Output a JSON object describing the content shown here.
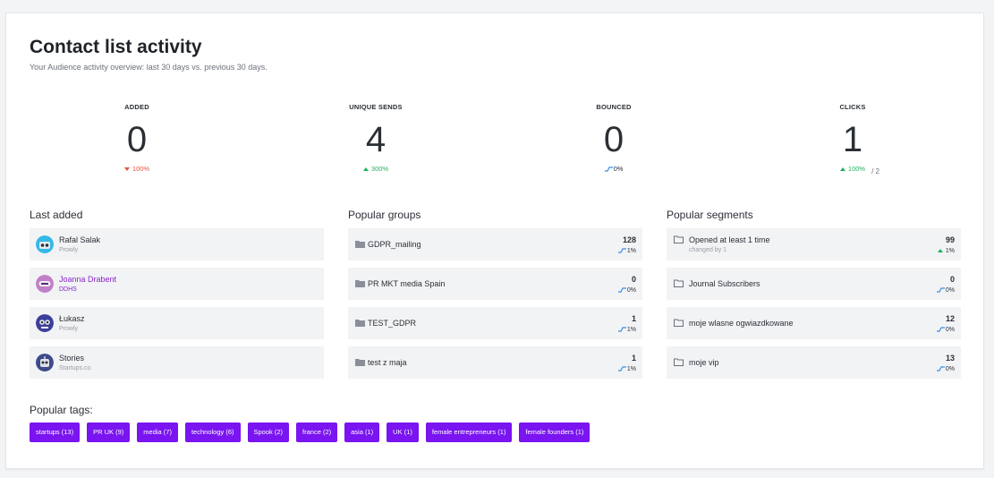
{
  "header": {
    "title": "Contact list activity",
    "subtitle": "Your Audience activity overview: last 30 days vs. previous 30 days."
  },
  "stats": [
    {
      "label": "ADDED",
      "value": "0",
      "change": "100%",
      "trend": "down"
    },
    {
      "label": "UNIQUE SENDS",
      "value": "4",
      "change": "300%",
      "trend": "up"
    },
    {
      "label": "BOUNCED",
      "value": "0",
      "change": "0%",
      "trend": "flat"
    },
    {
      "label": "CLICKS",
      "value": "1",
      "of": "/ 2",
      "change": "100%",
      "trend": "up"
    }
  ],
  "last_added": {
    "title": "Last added",
    "items": [
      {
        "name": "Rafal Salak",
        "company": "Prowly"
      },
      {
        "name": "Joanna Drabent",
        "company": "DDHS"
      },
      {
        "name": "Łukasz",
        "company": "Prowly"
      },
      {
        "name": "Stories",
        "company": "Startups.co"
      }
    ]
  },
  "popular_groups": {
    "title": "Popular groups",
    "items": [
      {
        "name": "GDPR_mailing",
        "count": "128",
        "change": "1%"
      },
      {
        "name": "PR MKT media Spain",
        "count": "0",
        "change": "0%"
      },
      {
        "name": "TEST_GDPR",
        "count": "1",
        "change": "1%"
      },
      {
        "name": "test z maja",
        "count": "1",
        "change": "1%"
      }
    ]
  },
  "popular_segments": {
    "title": "Popular segments",
    "items": [
      {
        "name": "Opened at least 1 time",
        "sub": "changed by 1",
        "count": "99",
        "change": "1%"
      },
      {
        "name": "Journal Subscribers",
        "count": "0",
        "change": "0%"
      },
      {
        "name": "moje wlasne ogwiazdkowane",
        "count": "12",
        "change": "0%"
      },
      {
        "name": "moje vip",
        "count": "13",
        "change": "0%"
      }
    ]
  },
  "tags": {
    "title": "Popular tags:",
    "items": [
      "startups (13)",
      "PR UK (9)",
      "media (7)",
      "technology (6)",
      "Spook (2)",
      "france (2)",
      "asia (1)",
      "UK (1)",
      "female entrepreneurs (1)",
      "female founders (1)"
    ]
  },
  "colors": {
    "accent": "#7a14f0",
    "up": "#22b15a",
    "down": "#e5533d",
    "flat": "#3a8ee6"
  }
}
